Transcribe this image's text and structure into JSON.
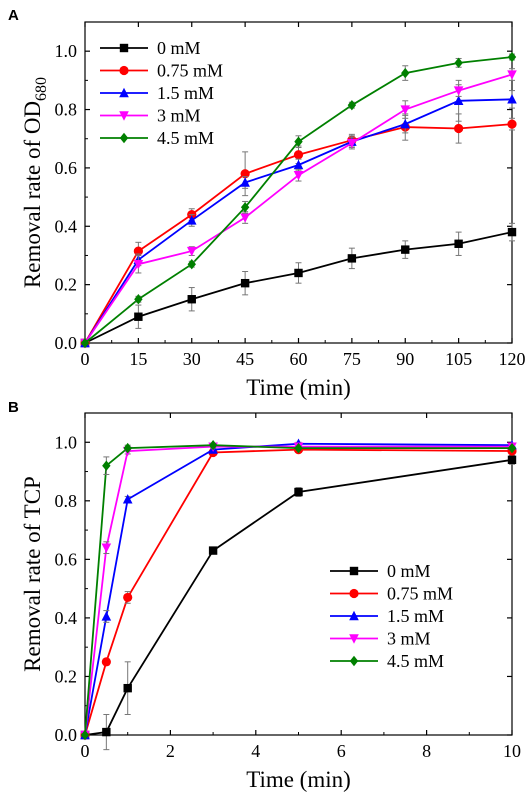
{
  "chart_data": [
    {
      "panel_label": "A",
      "type": "line",
      "xlabel": "Time (min)",
      "ylabel_main": "Removal rate of OD",
      "ylabel_sub": "680",
      "xlim": [
        0,
        120
      ],
      "ylim": [
        0,
        1.1
      ],
      "xticks": [
        0,
        15,
        30,
        45,
        60,
        75,
        90,
        105,
        120
      ],
      "yticks": [
        0.0,
        0.2,
        0.4,
        0.6,
        0.8,
        1.0
      ],
      "legend_position": "top-left",
      "x": [
        0,
        15,
        30,
        45,
        60,
        75,
        90,
        105,
        120
      ],
      "series": [
        {
          "name": "0 mM",
          "color": "#000000",
          "marker": "square",
          "values": [
            0,
            0.09,
            0.15,
            0.205,
            0.24,
            0.29,
            0.32,
            0.34,
            0.38
          ],
          "errors": [
            0,
            0.04,
            0.04,
            0.04,
            0.035,
            0.035,
            0.03,
            0.04,
            0.03
          ]
        },
        {
          "name": "0.75 mM",
          "color": "#ff0000",
          "marker": "circle",
          "values": [
            0,
            0.315,
            0.44,
            0.58,
            0.645,
            0.695,
            0.74,
            0.735,
            0.75
          ],
          "errors": [
            0,
            0.03,
            0.02,
            0.075,
            0.03,
            0.02,
            0.045,
            0.05,
            0.02
          ]
        },
        {
          "name": "1.5 mM",
          "color": "#0000ff",
          "marker": "triangle",
          "values": [
            0,
            0.285,
            0.42,
            0.55,
            0.61,
            0.69,
            0.75,
            0.83,
            0.835
          ],
          "errors": [
            0,
            0.02,
            0.02,
            0.02,
            0.02,
            0.02,
            0.03,
            0.07,
            0.03
          ]
        },
        {
          "name": "3 mM",
          "color": "#ff00ff",
          "marker": "triangle-down",
          "values": [
            0,
            0.27,
            0.315,
            0.43,
            0.575,
            0.685,
            0.8,
            0.865,
            0.92
          ],
          "errors": [
            0,
            0.03,
            0.015,
            0.02,
            0.02,
            0.02,
            0.03,
            0.02,
            0.02
          ]
        },
        {
          "name": "4.5 mM",
          "color": "#008000",
          "marker": "diamond",
          "values": [
            0,
            0.15,
            0.27,
            0.465,
            0.69,
            0.815,
            0.925,
            0.96,
            0.98
          ],
          "errors": [
            0,
            0.01,
            0.01,
            0.02,
            0.02,
            0.01,
            0.025,
            0.015,
            0.01
          ]
        }
      ]
    },
    {
      "panel_label": "B",
      "type": "line",
      "xlabel": "Time (min)",
      "ylabel_main": "Removal rate of TCP",
      "ylabel_sub": "",
      "xlim": [
        0,
        10
      ],
      "ylim": [
        0,
        1.1
      ],
      "xticks": [
        0,
        2,
        4,
        6,
        8,
        10
      ],
      "yticks": [
        0.0,
        0.2,
        0.4,
        0.6,
        0.8,
        1.0
      ],
      "legend_position": "bottom-right",
      "series": [
        {
          "name": "0 mM",
          "color": "#000000",
          "marker": "square",
          "x": [
            0,
            0.5,
            1,
            3,
            5,
            10
          ],
          "values": [
            0,
            0.01,
            0.16,
            0.63,
            0.83,
            0.94
          ],
          "errors": [
            0,
            0.06,
            0.09,
            0.01,
            0.015,
            0.015
          ]
        },
        {
          "name": "0.75 mM",
          "color": "#ff0000",
          "marker": "circle",
          "x": [
            0,
            0.5,
            1,
            3,
            5,
            10
          ],
          "values": [
            0,
            0.25,
            0.47,
            0.965,
            0.975,
            0.97
          ],
          "errors": [
            0,
            0.01,
            0.02,
            0.01,
            0.005,
            0.005
          ]
        },
        {
          "name": "1.5 mM",
          "color": "#0000ff",
          "marker": "triangle",
          "x": [
            0,
            0.5,
            1,
            3,
            5,
            10
          ],
          "values": [
            0,
            0.405,
            0.805,
            0.975,
            0.995,
            0.99
          ],
          "errors": [
            0,
            0.02,
            0.01,
            0.005,
            0.005,
            0.005
          ]
        },
        {
          "name": "3 mM",
          "color": "#ff00ff",
          "marker": "triangle-down",
          "x": [
            0,
            0.5,
            1,
            3,
            5,
            10
          ],
          "values": [
            0,
            0.64,
            0.97,
            0.985,
            0.985,
            0.985
          ],
          "errors": [
            0,
            0.02,
            0.01,
            0.005,
            0.005,
            0.005
          ]
        },
        {
          "name": "4.5 mM",
          "color": "#008000",
          "marker": "diamond",
          "x": [
            0,
            0.5,
            1,
            3,
            5,
            10
          ],
          "values": [
            0,
            0.92,
            0.98,
            0.99,
            0.98,
            0.98
          ],
          "errors": [
            0,
            0.03,
            0.01,
            0.005,
            0.005,
            0.005
          ]
        }
      ]
    }
  ]
}
